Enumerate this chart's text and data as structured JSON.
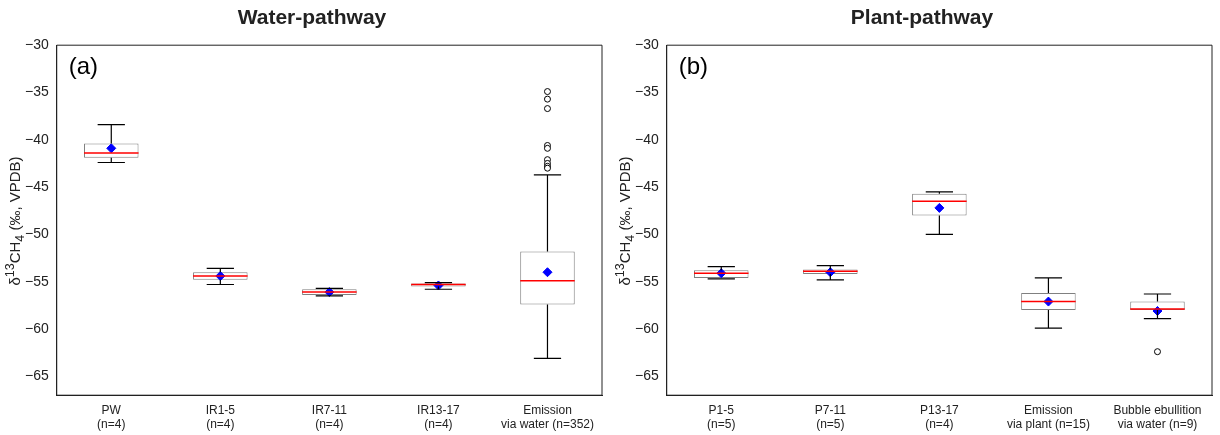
{
  "chart_data": [
    {
      "type": "box",
      "title": "Water-pathway",
      "ylabel": "δ$^{13}$CH$_{4}$ (‰, VPDB)",
      "annotations": [
        "(a)"
      ],
      "grid": false,
      "marker": "diamond",
      "categories": [
        "PW\n(n=4)",
        "IR1-5\n(n=4)",
        "IR7-11\n(n=4)",
        "IR13-17\n(n=4)",
        "Emission\nvia water (n=352)"
      ],
      "ylim": [
        -67,
        -30
      ],
      "yticks": [
        -30,
        -35,
        -40,
        -45,
        -50,
        -55,
        -60,
        -65
      ],
      "boxes": [
        {
          "low": -42.4,
          "q1": -41.9,
          "median": -41.4,
          "q3": -40.4,
          "high": -38.4,
          "mean": -40.9
        },
        {
          "low": -55.3,
          "q1": -54.8,
          "median": -54.4,
          "q3": -54.0,
          "high": -53.6,
          "mean": -54.4
        },
        {
          "low": -56.5,
          "q1": -56.4,
          "median": -56.1,
          "q3": -55.8,
          "high": -55.7,
          "mean": -56.1
        },
        {
          "low": -55.8,
          "q1": -55.5,
          "median": -55.3,
          "q3": -55.2,
          "high": -55.1,
          "mean": -55.4
        },
        {
          "low": -63.1,
          "q1": -57.4,
          "median": -54.9,
          "q3": -51.8,
          "high": -43.7,
          "mean": -54.0,
          "outliers": [
            -34.9,
            -35.7,
            -36.7,
            -40.6,
            -40.9,
            -42.1,
            -42.5,
            -42.8,
            -43.0
          ]
        }
      ]
    },
    {
      "type": "box",
      "title": "Plant-pathway",
      "ylabel": "δ$^{13}$CH$_{4}$ (‰, VPDB)",
      "annotations": [
        "(b)"
      ],
      "grid": false,
      "marker": "diamond",
      "categories": [
        "P1-5\n(n=5)",
        "P7-11\n(n=5)",
        "P13-17\n(n=4)",
        "Emission\nvia plant (n=15)",
        "Bubble ebullition\nvia water (n=9)"
      ],
      "ylim": [
        -67,
        -30
      ],
      "yticks": [
        -30,
        -35,
        -40,
        -45,
        -50,
        -55,
        -60,
        -65
      ],
      "boxes": [
        {
          "low": -54.7,
          "q1": -54.6,
          "median": -54.1,
          "q3": -53.8,
          "high": -53.4,
          "mean": -54.1
        },
        {
          "low": -54.8,
          "q1": -54.2,
          "median": -53.9,
          "q3": -53.7,
          "high": -53.3,
          "mean": -54.0
        },
        {
          "low": -50.0,
          "q1": -48.0,
          "median": -46.5,
          "q3": -45.7,
          "high": -45.5,
          "mean": -47.2
        },
        {
          "low": -59.9,
          "q1": -58.0,
          "median": -57.1,
          "q3": -56.2,
          "high": -54.6,
          "mean": -57.1
        },
        {
          "low": -58.9,
          "q1": -58.0,
          "median": -57.9,
          "q3": -57.1,
          "high": -56.3,
          "mean": -58.1,
          "outliers": [
            -62.4
          ]
        }
      ]
    }
  ]
}
